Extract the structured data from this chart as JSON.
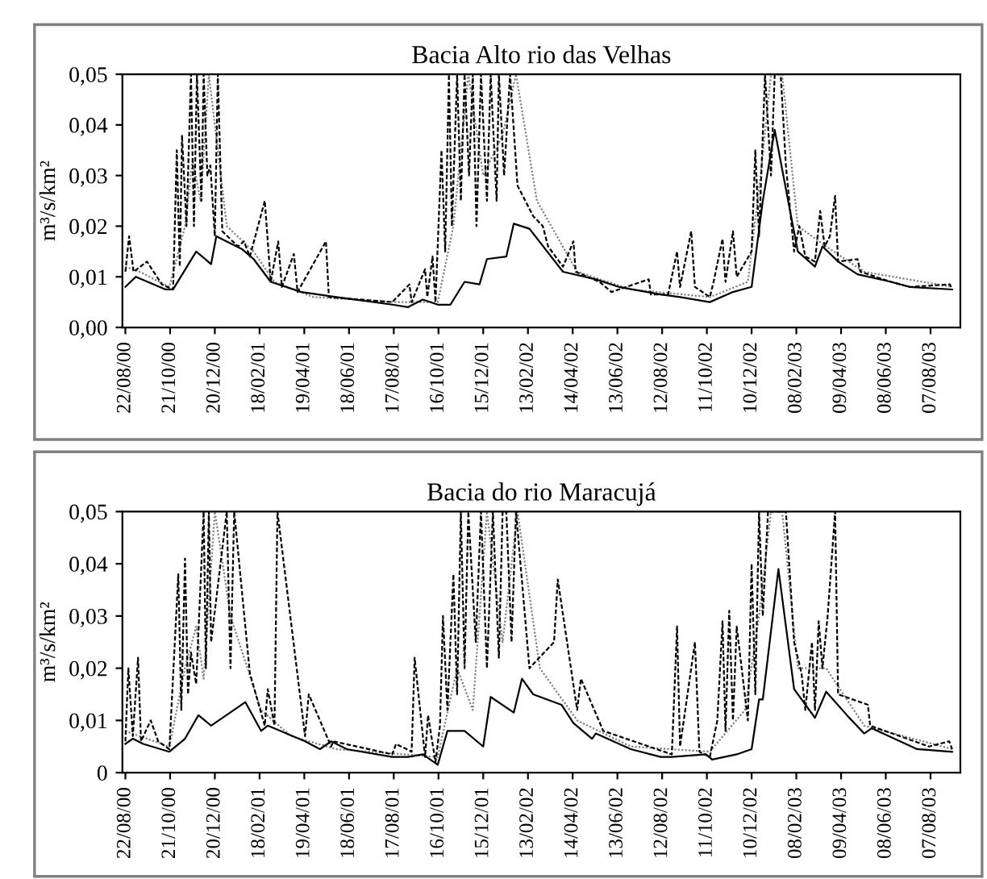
{
  "chart_data": [
    {
      "type": "line",
      "title": "Bacia Alto rio das Velhas",
      "ylabel": "m³/s/km²",
      "xlim": [
        "2000-08-18",
        "2003-09-16"
      ],
      "ylim": [
        0,
        0.05
      ],
      "xticks": [
        {
          "value": "2000-08-22",
          "label": "22/08/00"
        },
        {
          "value": "2000-10-21",
          "label": "21/10/00"
        },
        {
          "value": "2000-12-20",
          "label": "20/12/00"
        },
        {
          "value": "2001-02-18",
          "label": "18/02/01"
        },
        {
          "value": "2001-04-19",
          "label": "19/04/01"
        },
        {
          "value": "2001-06-18",
          "label": "18/06/01"
        },
        {
          "value": "2001-08-17",
          "label": "17/08/01"
        },
        {
          "value": "2001-10-16",
          "label": "16/10/01"
        },
        {
          "value": "2001-12-15",
          "label": "15/12/01"
        },
        {
          "value": "2002-02-13",
          "label": "13/02/02"
        },
        {
          "value": "2002-04-14",
          "label": "14/04/02"
        },
        {
          "value": "2002-06-13",
          "label": "13/06/02"
        },
        {
          "value": "2002-08-12",
          "label": "12/08/02"
        },
        {
          "value": "2002-10-11",
          "label": "11/10/02"
        },
        {
          "value": "2002-12-10",
          "label": "10/12/02"
        },
        {
          "value": "2003-02-08",
          "label": "08/02/03"
        },
        {
          "value": "2003-04-09",
          "label": "09/04/03"
        },
        {
          "value": "2003-06-08",
          "label": "08/06/03"
        },
        {
          "value": "2003-08-07",
          "label": "07/08/03"
        }
      ],
      "yticks": [
        {
          "value": 0,
          "label": "0,00"
        },
        {
          "value": 0.01,
          "label": "0,01"
        },
        {
          "value": 0.02,
          "label": "0,02"
        },
        {
          "value": 0.03,
          "label": "0,03"
        },
        {
          "value": 0.04,
          "label": "0,04"
        },
        {
          "value": 0.05,
          "label": "0,05"
        }
      ],
      "grid": false,
      "legend": false,
      "marker": "none",
      "series": [
        {
          "color": "#808080",
          "line_style": "dotted",
          "x": [
            "2000-08-22",
            "2000-09-10",
            "2000-10-20",
            "2000-11-10",
            "2000-11-20",
            "2000-12-01",
            "2000-12-12",
            "2001-01-05",
            "2001-02-10",
            "2001-03-10",
            "2001-05-01",
            "2001-08-20",
            "2001-10-15",
            "2001-11-05",
            "2001-11-25",
            "2001-12-15",
            "2002-01-10",
            "2002-01-28",
            "2002-02-25",
            "2002-04-20",
            "2002-07-01",
            "2002-10-15",
            "2002-12-05",
            "2002-12-22",
            "2003-01-05",
            "2003-01-20",
            "2003-02-10",
            "2003-03-20",
            "2003-05-10",
            "2003-09-05"
          ],
          "values": [
            0.012,
            0.011,
            0.008,
            0.02,
            0.033,
            0.025,
            0.05,
            0.02,
            0.015,
            0.009,
            0.006,
            0.005,
            0.005,
            0.02,
            0.05,
            0.03,
            0.038,
            0.05,
            0.025,
            0.011,
            0.0075,
            0.006,
            0.009,
            0.03,
            0.05,
            0.05,
            0.02,
            0.016,
            0.011,
            0.008
          ]
        },
        {
          "color": "#000000",
          "line_style": "dashed",
          "x": [
            "2000-08-22",
            "2000-08-27",
            "2000-09-02",
            "2000-09-20",
            "2000-10-10",
            "2000-10-25",
            "2000-10-30",
            "2000-11-03",
            "2000-11-06",
            "2000-11-12",
            "2000-11-18",
            "2000-11-22",
            "2000-11-26",
            "2000-12-02",
            "2000-12-05",
            "2000-12-10",
            "2000-12-14",
            "2000-12-20",
            "2000-12-24",
            "2000-12-30",
            "2001-01-20",
            "2001-01-28",
            "2001-02-05",
            "2001-02-25",
            "2001-03-05",
            "2001-03-15",
            "2001-03-20",
            "2001-04-05",
            "2001-04-10",
            "2001-05-18",
            "2001-05-22",
            "2001-08-15",
            "2001-09-07",
            "2001-09-10",
            "2001-09-28",
            "2001-10-01",
            "2001-10-08",
            "2001-10-12",
            "2001-10-20",
            "2001-10-25",
            "2001-10-30",
            "2001-11-03",
            "2001-11-10",
            "2001-11-15",
            "2001-11-20",
            "2001-11-26",
            "2001-12-01",
            "2001-12-06",
            "2001-12-12",
            "2001-12-20",
            "2001-12-25",
            "2002-01-02",
            "2002-01-05",
            "2002-01-12",
            "2002-01-20",
            "2002-01-30",
            "2002-02-20",
            "2002-03-05",
            "2002-03-12",
            "2002-04-01",
            "2002-04-15",
            "2002-04-18",
            "2002-05-20",
            "2002-06-05",
            "2002-07-25",
            "2002-07-28",
            "2002-08-20",
            "2002-09-01",
            "2002-09-05",
            "2002-09-20",
            "2002-09-25",
            "2002-10-15",
            "2002-10-20",
            "2002-11-01",
            "2002-11-05",
            "2002-11-15",
            "2002-11-20",
            "2002-12-10",
            "2002-12-15",
            "2002-12-20",
            "2002-12-28",
            "2003-01-05",
            "2003-01-10",
            "2003-01-18",
            "2003-01-25",
            "2003-02-05",
            "2003-02-12",
            "2003-02-20",
            "2003-03-05",
            "2003-03-12",
            "2003-03-18",
            "2003-03-25",
            "2003-04-01",
            "2003-04-05",
            "2003-05-01",
            "2003-05-05",
            "2003-06-15",
            "2003-07-10",
            "2003-09-02",
            "2003-09-05"
          ],
          "values": [
            0.011,
            0.018,
            0.011,
            0.013,
            0.0085,
            0.0075,
            0.035,
            0.012,
            0.038,
            0.02,
            0.05,
            0.02,
            0.05,
            0.025,
            0.05,
            0.03,
            0.032,
            0.018,
            0.05,
            0.019,
            0.016,
            0.017,
            0.014,
            0.025,
            0.009,
            0.017,
            0.008,
            0.0145,
            0.007,
            0.017,
            0.006,
            0.005,
            0.0085,
            0.005,
            0.0115,
            0.006,
            0.014,
            0.005,
            0.035,
            0.015,
            0.05,
            0.02,
            0.05,
            0.025,
            0.05,
            0.03,
            0.05,
            0.02,
            0.05,
            0.025,
            0.05,
            0.025,
            0.05,
            0.03,
            0.05,
            0.028,
            0.022,
            0.02,
            0.016,
            0.012,
            0.017,
            0.011,
            0.009,
            0.007,
            0.0095,
            0.0065,
            0.0065,
            0.015,
            0.008,
            0.019,
            0.008,
            0.006,
            0.009,
            0.0175,
            0.009,
            0.019,
            0.01,
            0.015,
            0.035,
            0.018,
            0.05,
            0.03,
            0.05,
            0.05,
            0.032,
            0.015,
            0.02,
            0.014,
            0.013,
            0.023,
            0.016,
            0.018,
            0.026,
            0.013,
            0.0135,
            0.011,
            0.009,
            0.008,
            0.0085,
            0.0075
          ]
        },
        {
          "color": "#000000",
          "line_style": "solid",
          "x": [
            "2000-08-22",
            "2000-09-05",
            "2000-10-15",
            "2000-10-25",
            "2000-11-25",
            "2000-12-15",
            "2000-12-22",
            "2001-01-25",
            "2001-02-10",
            "2001-03-05",
            "2001-04-15",
            "2001-06-01",
            "2001-08-15",
            "2001-09-05",
            "2001-09-25",
            "2001-10-15",
            "2001-11-01",
            "2001-11-20",
            "2001-12-10",
            "2001-12-20",
            "2002-01-15",
            "2002-01-25",
            "2002-02-15",
            "2002-04-01",
            "2002-05-15",
            "2002-06-15",
            "2002-08-10",
            "2002-09-05",
            "2002-10-15",
            "2002-11-15",
            "2002-12-10",
            "2002-12-25",
            "2003-01-10",
            "2003-01-28",
            "2003-02-10",
            "2003-03-05",
            "2003-03-15",
            "2003-04-05",
            "2003-05-01",
            "2003-06-15",
            "2003-07-10",
            "2003-09-05"
          ],
          "values": [
            0.008,
            0.01,
            0.0075,
            0.0075,
            0.015,
            0.0125,
            0.018,
            0.0155,
            0.0135,
            0.009,
            0.007,
            0.006,
            0.0045,
            0.004,
            0.0055,
            0.0045,
            0.0045,
            0.009,
            0.0085,
            0.0135,
            0.014,
            0.0205,
            0.0195,
            0.011,
            0.0095,
            0.008,
            0.0065,
            0.006,
            0.005,
            0.007,
            0.008,
            0.025,
            0.039,
            0.025,
            0.015,
            0.012,
            0.016,
            0.013,
            0.0105,
            0.009,
            0.008,
            0.0075
          ]
        }
      ]
    },
    {
      "type": "line",
      "title": "Bacia do rio Maracujá",
      "ylabel": "m³/s/km²",
      "xlim": [
        "2000-08-18",
        "2003-09-16"
      ],
      "ylim": [
        0,
        0.05
      ],
      "xticks": [
        {
          "value": "2000-08-22",
          "label": "22/08/00"
        },
        {
          "value": "2000-10-21",
          "label": "21/10/00"
        },
        {
          "value": "2000-12-20",
          "label": "20/12/00"
        },
        {
          "value": "2001-02-18",
          "label": "18/02/01"
        },
        {
          "value": "2001-04-19",
          "label": "19/04/01"
        },
        {
          "value": "2001-06-18",
          "label": "18/06/01"
        },
        {
          "value": "2001-08-17",
          "label": "17/08/01"
        },
        {
          "value": "2001-10-16",
          "label": "16/10/01"
        },
        {
          "value": "2001-12-15",
          "label": "15/12/01"
        },
        {
          "value": "2002-02-13",
          "label": "13/02/02"
        },
        {
          "value": "2002-04-14",
          "label": "14/04/02"
        },
        {
          "value": "2002-06-13",
          "label": "13/06/02"
        },
        {
          "value": "2002-08-12",
          "label": "12/08/02"
        },
        {
          "value": "2002-10-11",
          "label": "11/10/02"
        },
        {
          "value": "2002-12-10",
          "label": "10/12/02"
        },
        {
          "value": "2003-02-08",
          "label": "08/02/03"
        },
        {
          "value": "2003-04-09",
          "label": "09/04/03"
        },
        {
          "value": "2003-06-08",
          "label": "08/06/03"
        },
        {
          "value": "2003-08-07",
          "label": "07/08/03"
        }
      ],
      "yticks": [
        0,
        {
          "value": 0.01,
          "label": "0,01"
        },
        {
          "value": 0.02,
          "label": "0,02"
        },
        {
          "value": 0.03,
          "label": "0,03"
        },
        {
          "value": 0.04,
          "label": "0,04"
        },
        {
          "value": 0.05,
          "label": "0,05"
        }
      ],
      "grid": false,
      "legend": false,
      "marker": "none",
      "series": [
        {
          "color": "#808080",
          "line_style": "dotted",
          "x": [
            "2000-08-22",
            "2000-09-10",
            "2000-10-20",
            "2000-11-10",
            "2000-11-25",
            "2000-12-05",
            "2000-12-20",
            "2001-01-10",
            "2001-02-20",
            "2001-04-01",
            "2001-06-01",
            "2001-09-01",
            "2001-10-15",
            "2001-11-10",
            "2001-12-01",
            "2001-12-20",
            "2002-01-10",
            "2002-01-30",
            "2002-03-01",
            "2002-04-20",
            "2002-07-01",
            "2002-10-15",
            "2002-12-01",
            "2002-12-20",
            "2003-01-05",
            "2003-01-20",
            "2003-02-10",
            "2003-03-20",
            "2003-05-10",
            "2003-09-05"
          ],
          "values": [
            0.008,
            0.007,
            0.005,
            0.02,
            0.028,
            0.018,
            0.05,
            0.03,
            0.012,
            0.007,
            0.0045,
            0.0035,
            0.003,
            0.02,
            0.012,
            0.05,
            0.025,
            0.05,
            0.02,
            0.01,
            0.005,
            0.004,
            0.012,
            0.03,
            0.05,
            0.05,
            0.02,
            0.02,
            0.009,
            0.0045
          ]
        },
        {
          "color": "#000000",
          "line_style": "dashed",
          "x": [
            "2000-08-22",
            "2000-08-26",
            "2000-09-01",
            "2000-09-08",
            "2000-09-12",
            "2000-09-25",
            "2000-10-05",
            "2000-10-20",
            "2000-11-01",
            "2000-11-05",
            "2000-11-10",
            "2000-11-14",
            "2000-11-18",
            "2000-11-25",
            "2000-12-05",
            "2000-12-08",
            "2000-12-12",
            "2000-12-15",
            "2001-01-05",
            "2001-01-10",
            "2001-01-15",
            "2001-02-05",
            "2001-02-25",
            "2001-03-01",
            "2001-03-10",
            "2001-03-14",
            "2001-04-20",
            "2001-04-25",
            "2001-05-25",
            "2001-05-28",
            "2001-08-15",
            "2001-08-20",
            "2001-09-10",
            "2001-09-14",
            "2001-09-28",
            "2001-10-02",
            "2001-10-12",
            "2001-10-18",
            "2001-10-22",
            "2001-10-28",
            "2001-11-05",
            "2001-11-10",
            "2001-11-15",
            "2001-11-20",
            "2001-11-25",
            "2001-12-05",
            "2001-12-12",
            "2001-12-20",
            "2001-12-28",
            "2002-01-05",
            "2002-01-10",
            "2002-01-15",
            "2002-01-22",
            "2002-01-28",
            "2002-02-15",
            "2002-03-20",
            "2002-03-25",
            "2002-04-20",
            "2002-04-25",
            "2002-05-25",
            "2002-08-25",
            "2002-09-01",
            "2002-09-05",
            "2002-09-25",
            "2002-10-01",
            "2002-10-15",
            "2002-10-25",
            "2002-11-01",
            "2002-11-05",
            "2002-11-10",
            "2002-11-15",
            "2002-11-20",
            "2002-12-05",
            "2002-12-10",
            "2002-12-15",
            "2002-12-20",
            "2002-12-25",
            "2003-01-01",
            "2003-01-08",
            "2003-01-15",
            "2003-01-25",
            "2003-02-05",
            "2003-02-15",
            "2003-02-20",
            "2003-03-01",
            "2003-03-05",
            "2003-03-10",
            "2003-03-15",
            "2003-03-22",
            "2003-04-01",
            "2003-04-05",
            "2003-05-15",
            "2003-05-18",
            "2003-08-05",
            "2003-09-01",
            "2003-09-05"
          ],
          "values": [
            0.006,
            0.02,
            0.007,
            0.022,
            0.006,
            0.01,
            0.006,
            0.0045,
            0.038,
            0.012,
            0.041,
            0.015,
            0.023,
            0.017,
            0.05,
            0.02,
            0.05,
            0.025,
            0.05,
            0.02,
            0.05,
            0.019,
            0.009,
            0.016,
            0.009,
            0.05,
            0.007,
            0.015,
            0.005,
            0.006,
            0.0035,
            0.0055,
            0.004,
            0.022,
            0.003,
            0.011,
            0.002,
            0.009,
            0.03,
            0.012,
            0.038,
            0.015,
            0.05,
            0.02,
            0.05,
            0.025,
            0.05,
            0.02,
            0.05,
            0.022,
            0.05,
            0.05,
            0.025,
            0.05,
            0.02,
            0.025,
            0.037,
            0.012,
            0.018,
            0.008,
            0.0035,
            0.028,
            0.005,
            0.025,
            0.004,
            0.003,
            0.01,
            0.029,
            0.008,
            0.031,
            0.01,
            0.028,
            0.01,
            0.04,
            0.015,
            0.05,
            0.03,
            0.05,
            0.05,
            0.05,
            0.05,
            0.025,
            0.019,
            0.012,
            0.025,
            0.012,
            0.029,
            0.02,
            0.03,
            0.05,
            0.015,
            0.013,
            0.009,
            0.005,
            0.006,
            0.0045
          ]
        },
        {
          "color": "#000000",
          "line_style": "solid",
          "x": [
            "2000-08-22",
            "2000-09-01",
            "2000-09-15",
            "2000-10-20",
            "2000-11-10",
            "2000-11-28",
            "2000-12-15",
            "2001-01-30",
            "2001-02-20",
            "2001-03-01",
            "2001-04-20",
            "2001-05-10",
            "2001-05-25",
            "2001-06-15",
            "2001-08-15",
            "2001-09-05",
            "2001-09-25",
            "2001-10-15",
            "2001-10-28",
            "2001-11-20",
            "2001-12-15",
            "2001-12-25",
            "2002-01-25",
            "2002-02-05",
            "2002-02-20",
            "2002-03-30",
            "2002-04-15",
            "2002-05-10",
            "2002-05-15",
            "2002-07-01",
            "2002-08-10",
            "2002-08-25",
            "2002-10-10",
            "2002-10-18",
            "2002-11-20",
            "2002-12-10",
            "2002-12-20",
            "2002-12-25",
            "2003-01-15",
            "2003-02-05",
            "2003-03-05",
            "2003-03-20",
            "2003-04-20",
            "2003-05-10",
            "2003-05-20",
            "2003-07-20",
            "2003-09-05"
          ],
          "values": [
            0.0055,
            0.0065,
            0.0055,
            0.004,
            0.0065,
            0.011,
            0.009,
            0.0135,
            0.008,
            0.009,
            0.006,
            0.0045,
            0.006,
            0.0045,
            0.003,
            0.003,
            0.0035,
            0.0015,
            0.008,
            0.008,
            0.005,
            0.0145,
            0.0115,
            0.018,
            0.015,
            0.013,
            0.0095,
            0.0065,
            0.0075,
            0.0045,
            0.003,
            0.003,
            0.0035,
            0.0025,
            0.0035,
            0.0045,
            0.014,
            0.014,
            0.039,
            0.016,
            0.0105,
            0.0155,
            0.0105,
            0.0075,
            0.0085,
            0.0045,
            0.004
          ]
        }
      ]
    }
  ]
}
